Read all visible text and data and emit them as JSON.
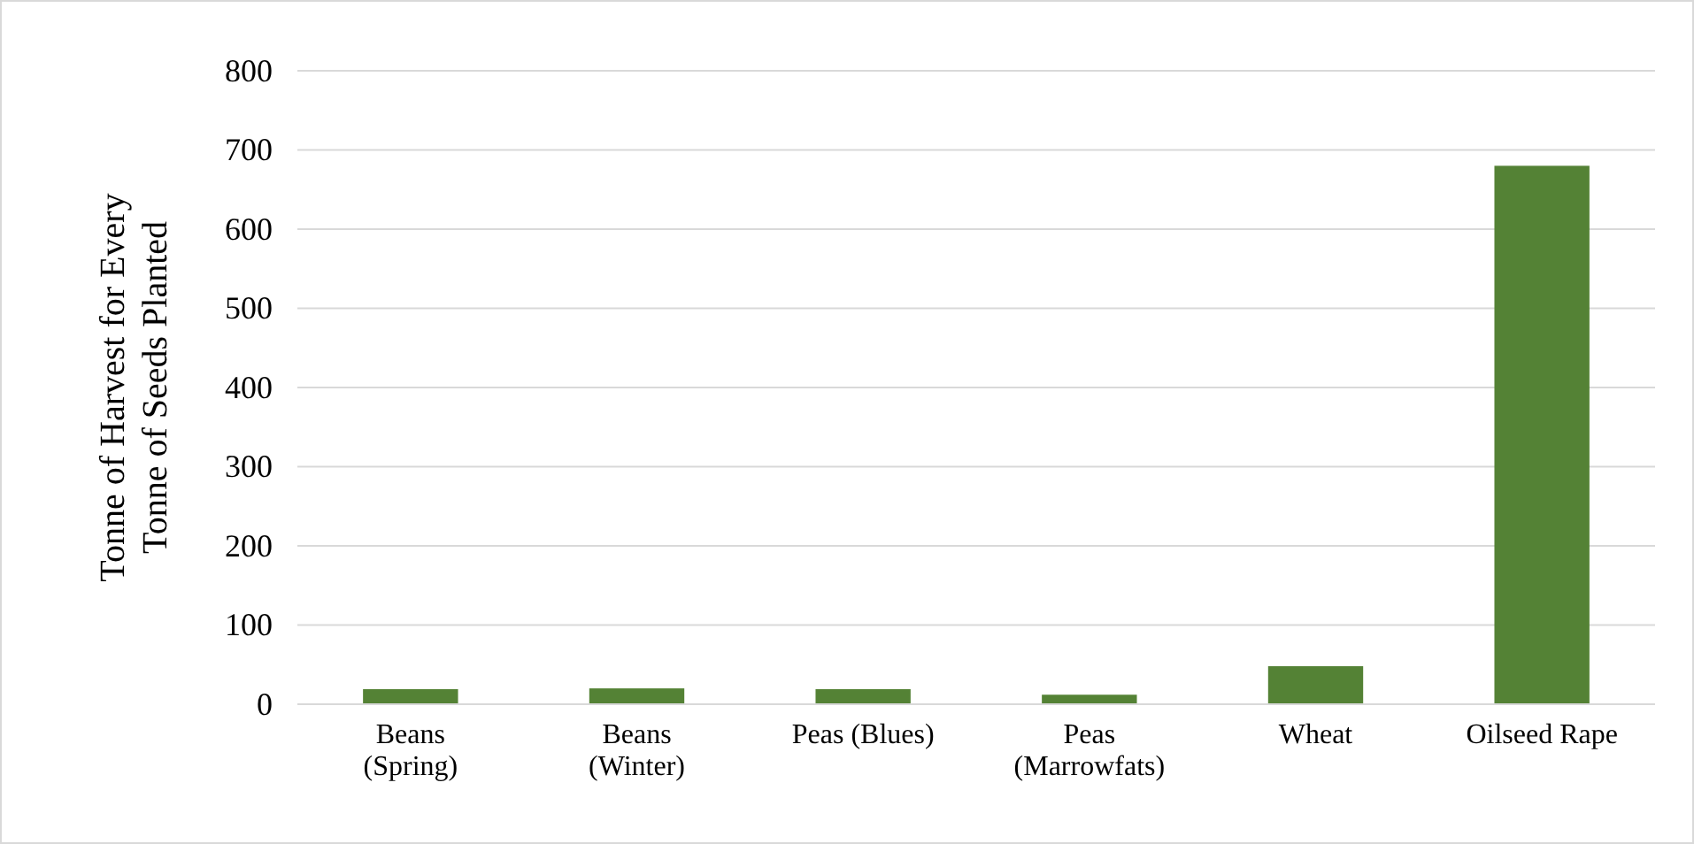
{
  "chart_data": {
    "type": "bar",
    "ylabel": "Tonne of Harvest for Every Tonne of Seeds Planted",
    "categories": [
      "Beans (Spring)",
      "Beans (Winter)",
      "Peas (Blues)",
      "Peas (Marrowfats)",
      "Wheat",
      "Oilseed Rape"
    ],
    "values": [
      19,
      20,
      19,
      12,
      48,
      680
    ],
    "color": "#548235",
    "ylim": [
      0,
      800
    ],
    "yticks": [
      0,
      100,
      200,
      300,
      400,
      500,
      600,
      700,
      800
    ],
    "grid": "y"
  }
}
